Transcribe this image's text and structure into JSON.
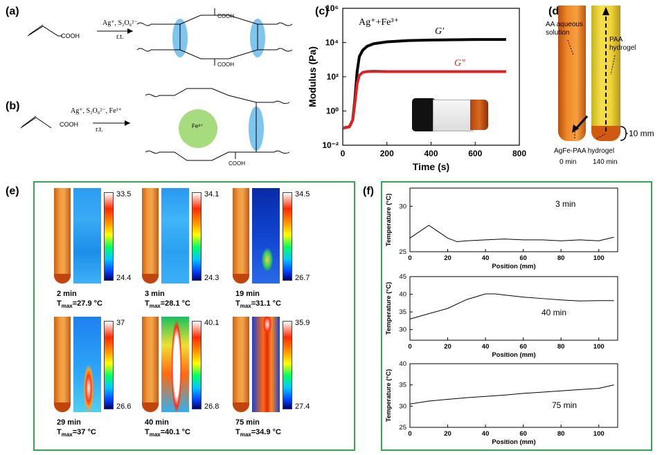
{
  "panels": {
    "a": {
      "label": "(a)",
      "reactant": "COOH",
      "reagent_top": "Ag⁺, S₂O₈²⁻",
      "reagent_bottom": "r.t.",
      "product_cooh_top": "COOH",
      "product_cooh_bottom": "COOH"
    },
    "b": {
      "label": "(b)",
      "reactant": "COOH",
      "reagent_top": "Ag⁺, S₂O₈²⁻, Fe³⁺",
      "reagent_bottom": "r.t.",
      "fe": "Fe³⁺",
      "product_cooh_bottom": "COOH"
    },
    "c": {
      "label": "(c)",
      "legend": "Ag⁺+Fe³⁺",
      "gprime": "G′",
      "gdoubleprime": "G″"
    },
    "d": {
      "label": "(d)",
      "aa": "AA aqueous solution",
      "paa": "PAA hydrogel",
      "agfe": "AgFe-PAA hydrogel",
      "dim": "10 mm",
      "t0": "0 min",
      "t1": "140 min"
    },
    "e": {
      "label": "(e)",
      "items": [
        {
          "time": "2 min",
          "tmax": "27.9",
          "max": "33.5",
          "min": "24.4"
        },
        {
          "time": "3 min",
          "tmax": "28.1",
          "max": "34.1",
          "min": "24.3"
        },
        {
          "time": "19 min",
          "tmax": "31.1",
          "max": "34.5",
          "min": "26.7"
        },
        {
          "time": "29 min",
          "tmax": "37",
          "max": "37",
          "min": "26.6"
        },
        {
          "time": "40 min",
          "tmax": "40.1",
          "max": "40.1",
          "min": "26.8"
        },
        {
          "time": "75 min",
          "tmax": "34.9",
          "max": "35.9",
          "min": "27.4"
        }
      ],
      "tmax_prefix": "T",
      "tmax_sub": "max",
      "unit": "°C"
    },
    "f": {
      "label": "(f)",
      "ylabel": "Temperature (°C)",
      "xlabel": "Position (mm)",
      "times": [
        "3 min",
        "40 min",
        "75 min"
      ]
    }
  },
  "chart_data": [
    {
      "type": "line",
      "title": "",
      "xlabel": "Time (s)",
      "ylabel": "Modulus (Pa)",
      "yscale": "log",
      "xlim": [
        0,
        800
      ],
      "ylim": [
        0.01,
        1000000
      ],
      "xticks": [
        "0",
        "200",
        "400",
        "600",
        "800"
      ],
      "yticks": [
        "10⁻²",
        "10⁰",
        "10²",
        "10⁴",
        "10⁶"
      ],
      "series": [
        {
          "name": "G′",
          "color": "#000000",
          "x": [
            0,
            30,
            45,
            55,
            65,
            75,
            90,
            110,
            140,
            200,
            300,
            400,
            500,
            600,
            740
          ],
          "y": [
            0.1,
            0.12,
            0.3,
            5,
            200,
            1500,
            3500,
            6000,
            8500,
            11000,
            13000,
            14000,
            14500,
            15000,
            15000
          ]
        },
        {
          "name": "G″",
          "color": "#e02020",
          "x": [
            0,
            30,
            45,
            55,
            65,
            75,
            90,
            110,
            140,
            200,
            300,
            400,
            500,
            600,
            740
          ],
          "y": [
            0.1,
            0.12,
            0.3,
            3,
            40,
            120,
            180,
            200,
            210,
            200,
            200,
            200,
            200,
            200,
            200
          ]
        }
      ]
    },
    {
      "type": "line",
      "title": "3 min",
      "xlabel": "Position (mm)",
      "ylabel": "Temperature (°C)",
      "xlim": [
        0,
        110
      ],
      "ylim": [
        25,
        32
      ],
      "xticks": [
        "0",
        "20",
        "40",
        "60",
        "80",
        "100"
      ],
      "yticks": [
        "25",
        "30"
      ],
      "series": [
        {
          "x": [
            0,
            5,
            10,
            15,
            20,
            25,
            30,
            40,
            50,
            60,
            70,
            80,
            90,
            100,
            108
          ],
          "y": [
            26.5,
            27.2,
            27.9,
            27.2,
            26.5,
            26.1,
            26.2,
            26.3,
            26.4,
            26.3,
            26.3,
            26.2,
            26.3,
            26.2,
            26.6
          ]
        }
      ]
    },
    {
      "type": "line",
      "title": "40 min",
      "xlabel": "Position (mm)",
      "ylabel": "Temperature (°C)",
      "xlim": [
        0,
        110
      ],
      "ylim": [
        27,
        45
      ],
      "xticks": [
        "0",
        "20",
        "40",
        "60",
        "80",
        "100"
      ],
      "yticks": [
        "30",
        "35",
        "40",
        "45"
      ],
      "series": [
        {
          "x": [
            0,
            10,
            20,
            30,
            40,
            45,
            50,
            60,
            70,
            80,
            90,
            100,
            108
          ],
          "y": [
            33,
            34.5,
            36,
            38.5,
            40.1,
            40.1,
            39.8,
            39.2,
            38.8,
            38.4,
            38.1,
            38.2,
            38.2
          ]
        }
      ]
    },
    {
      "type": "line",
      "title": "75 min",
      "xlabel": "Position (mm)",
      "ylabel": "Temperature (°C)",
      "xlim": [
        0,
        110
      ],
      "ylim": [
        25,
        40
      ],
      "xticks": [
        "0",
        "20",
        "40",
        "60",
        "80",
        "100"
      ],
      "yticks": [
        "25",
        "30",
        "35",
        "40"
      ],
      "series": [
        {
          "x": [
            0,
            10,
            20,
            30,
            40,
            50,
            60,
            70,
            80,
            90,
            100,
            108
          ],
          "y": [
            30.5,
            31.2,
            31.6,
            32.0,
            32.3,
            32.6,
            33.0,
            33.3,
            33.6,
            33.9,
            34.2,
            35.0
          ]
        }
      ]
    }
  ]
}
